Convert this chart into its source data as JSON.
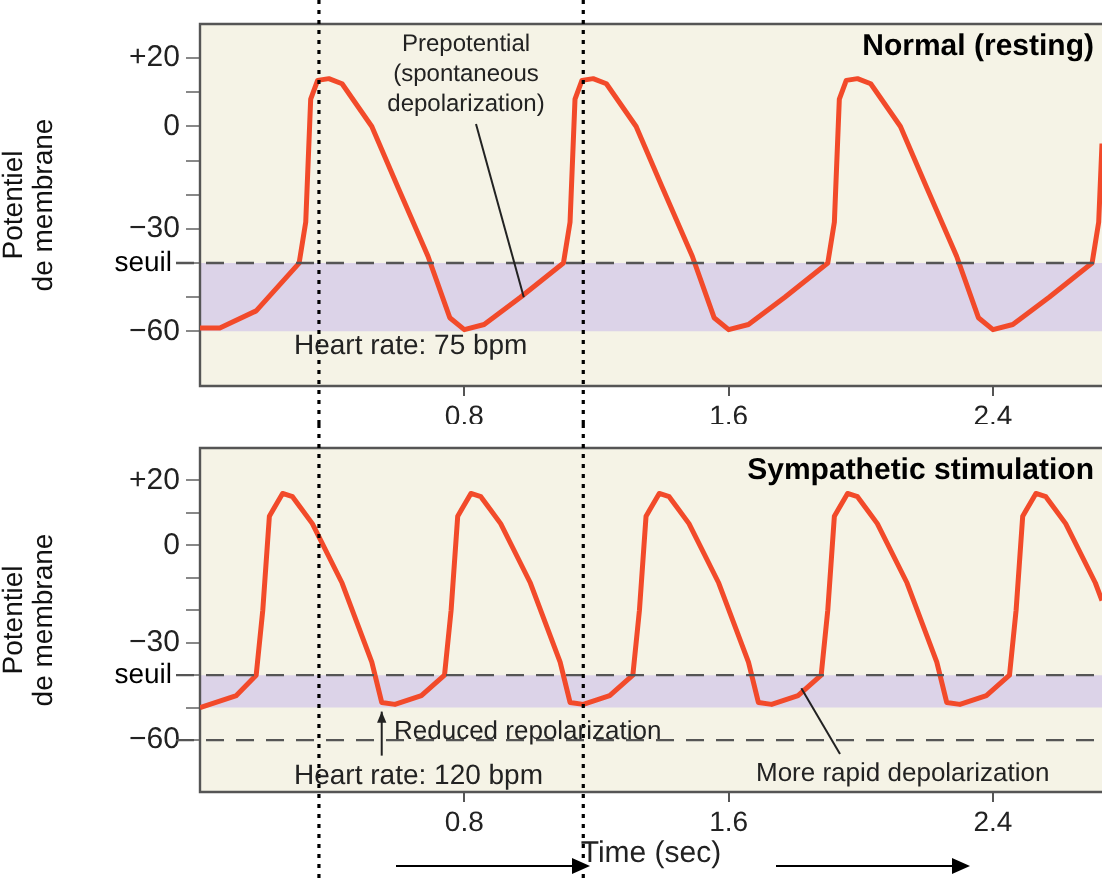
{
  "chart_data": [
    {
      "type": "line",
      "title": "Normal (resting)",
      "ylabel": "Potentiel\nde membrane",
      "x": [
        0,
        0.06,
        0.17,
        0.3,
        0.32,
        0.335,
        0.356,
        0.39,
        0.43,
        0.52,
        0.6,
        0.69,
        0.756,
        0.8,
        0.86,
        0.97,
        1.1,
        1.12,
        1.135,
        1.156,
        1.19,
        1.23,
        1.32,
        1.4,
        1.49,
        1.556,
        1.6,
        1.66,
        1.77,
        1.9,
        1.92,
        1.935,
        1.956,
        1.99,
        2.03,
        2.12,
        2.2,
        2.29,
        2.356,
        2.4,
        2.46,
        2.57,
        2.7,
        2.72,
        2.73
      ],
      "series": [
        {
          "color": "#f24a2a",
          "values": [
            -59,
            -59,
            -54,
            -40,
            -28,
            8,
            13.5,
            14,
            12.5,
            0,
            -18,
            -38,
            -56,
            -59.5,
            -58,
            -50,
            -40,
            -28,
            8,
            13.5,
            14,
            12.5,
            0,
            -18,
            -38,
            -56,
            -59.5,
            -58,
            -50,
            -40,
            -28,
            8,
            13.5,
            14,
            12.5,
            0,
            -18,
            -38,
            -56,
            -59.5,
            -58,
            -50,
            -40,
            -28,
            -5
          ]
        }
      ],
      "xlim": [
        0,
        2.73
      ],
      "xticks": [
        0.8,
        1.6,
        2.4
      ],
      "ylim": [
        -76,
        30
      ],
      "yticks": [
        {
          "value": 20,
          "label": "+20"
        },
        {
          "value": 10,
          "label": null
        },
        0,
        {
          "value": -10,
          "label": null
        },
        {
          "value": -20,
          "label": null
        },
        {
          "value": -30,
          "label": "−30"
        },
        {
          "value": -40,
          "label": null
        },
        {
          "value": -50,
          "label": null
        },
        {
          "value": -60,
          "label": "−60"
        }
      ],
      "ref_lines": [
        {
          "axis": "y",
          "value": -40,
          "label": "seuil",
          "color": "#555555",
          "line_style": "dashed"
        },
        {
          "axis": "x",
          "value": 0.36,
          "color": "#000000",
          "line_style": "dotted"
        },
        {
          "axis": "x",
          "value": 1.16,
          "color": "#000000",
          "line_style": "dotted"
        }
      ],
      "bands": [
        {
          "axis": "y",
          "from": -60,
          "to": -40,
          "color": "#dcd3e8"
        }
      ],
      "annotations": [
        {
          "text": "Prepotential\n(spontaneous\ndepolarization)",
          "x": 0.98,
          "y": -50
        },
        "Heart rate: 75 bpm"
      ],
      "legend": false,
      "marker": "none",
      "line_style": "solid"
    },
    {
      "type": "line",
      "title": "Sympathetic stimulation",
      "ylabel": "Potentiel\nde membrane",
      "xlabel": "Time (sec)",
      "x": [
        0,
        0.11,
        0.17,
        0.19,
        0.21,
        0.25,
        0.28,
        0.34,
        0.43,
        0.52,
        0.55,
        0.59,
        0.67,
        0.74,
        0.76,
        0.78,
        0.82,
        0.85,
        0.91,
        1.0,
        1.09,
        1.12,
        1.16,
        1.24,
        1.31,
        1.33,
        1.35,
        1.39,
        1.42,
        1.48,
        1.57,
        1.66,
        1.69,
        1.73,
        1.81,
        1.88,
        1.9,
        1.92,
        1.96,
        1.99,
        2.05,
        2.14,
        2.23,
        2.26,
        2.3,
        2.38,
        2.45,
        2.47,
        2.49,
        2.53,
        2.56,
        2.62,
        2.71,
        2.73
      ],
      "series": [
        {
          "color": "#f24a2a",
          "values": [
            -50,
            -46.3,
            -40,
            -20,
            9,
            16,
            15,
            6.7,
            -11.6,
            -36,
            -48.4,
            -49,
            -46.3,
            -40,
            -20,
            9,
            16,
            15,
            6.7,
            -11.6,
            -36,
            -48.4,
            -49,
            -46.3,
            -40,
            -20,
            9,
            16,
            15,
            6.7,
            -11.6,
            -36,
            -48.4,
            -49,
            -46.3,
            -40,
            -20,
            9,
            16,
            15,
            6.7,
            -11.6,
            -36,
            -48.4,
            -49,
            -46.3,
            -40,
            -20,
            9,
            16,
            15,
            6.7,
            -11.6,
            -17
          ]
        }
      ],
      "xlim": [
        0,
        2.73
      ],
      "xticks": [
        0.8,
        1.6,
        2.4
      ],
      "ylim": [
        -76,
        30
      ],
      "yticks": [
        {
          "value": 20,
          "label": "+20"
        },
        {
          "value": 10,
          "label": null
        },
        0,
        {
          "value": -10,
          "label": null
        },
        {
          "value": -20,
          "label": null
        },
        {
          "value": -30,
          "label": "−30"
        },
        {
          "value": -40,
          "label": null
        },
        {
          "value": -50,
          "label": null
        },
        {
          "value": -60,
          "label": "−60"
        }
      ],
      "ref_lines": [
        {
          "axis": "y",
          "value": -40,
          "label": "seuil",
          "color": "#555555",
          "line_style": "dashed"
        },
        {
          "axis": "y",
          "value": -60,
          "color": "#555555",
          "line_style": "dashed"
        },
        {
          "axis": "x",
          "value": 0.36,
          "color": "#000000",
          "line_style": "dotted"
        },
        {
          "axis": "x",
          "value": 1.16,
          "color": "#000000",
          "line_style": "dotted"
        }
      ],
      "bands": [
        {
          "axis": "y",
          "from": -50,
          "to": -40,
          "color": "#dcd3e8"
        }
      ],
      "annotations": [
        {
          "text": "Reduced repolarization",
          "x": 0.55,
          "y": -50
        },
        {
          "text": "More rapid depolarization",
          "x": 1.82,
          "y": -44
        },
        "Heart rate: 120 bpm"
      ],
      "legend": false,
      "marker": "none",
      "line_style": "solid"
    }
  ]
}
